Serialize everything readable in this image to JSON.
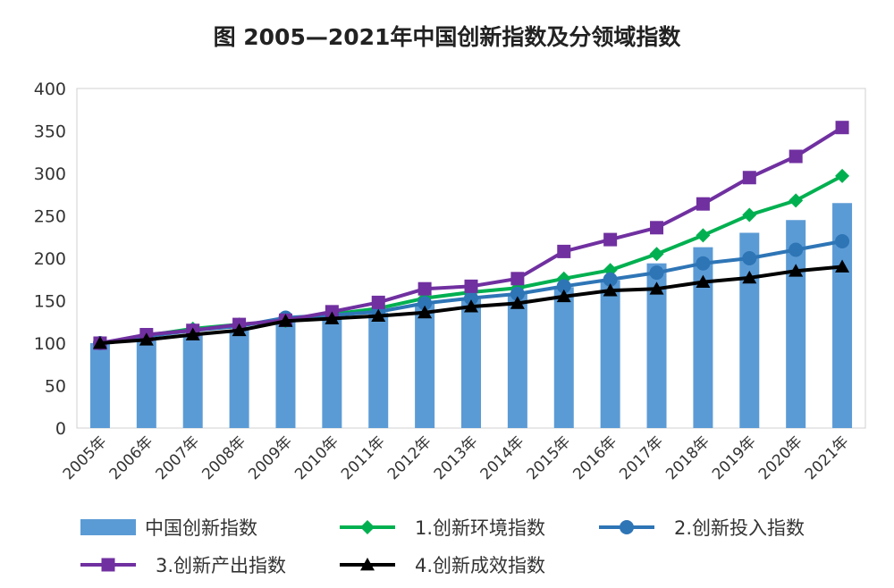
{
  "chart_data": {
    "type": "bar+line",
    "title": "图 2005—2021年中国创新指数及分领域指数",
    "categories": [
      "2005年",
      "2006年",
      "2007年",
      "2008年",
      "2009年",
      "2010年",
      "2011年",
      "2012年",
      "2013年",
      "2014年",
      "2015年",
      "2016年",
      "2017年",
      "2018年",
      "2019年",
      "2020年",
      "2021年"
    ],
    "ylim": [
      0,
      400
    ],
    "yticks": [
      0,
      50,
      100,
      150,
      200,
      250,
      300,
      350,
      400
    ],
    "grid": false,
    "legend_position": "bottom",
    "bar_series": {
      "name": "中国创新指数",
      "color": "#5b9bd5",
      "values": [
        100,
        106,
        111,
        116,
        127,
        131,
        136,
        147,
        152,
        158,
        166,
        174,
        194,
        213,
        230,
        245,
        265
      ]
    },
    "series": [
      {
        "name": "1.创新环境指数",
        "color": "#00b050",
        "marker": "diamond",
        "values": [
          100,
          109,
          117,
          122,
          126,
          134,
          141,
          153,
          160,
          165,
          176,
          186,
          205,
          227,
          251,
          268,
          297
        ]
      },
      {
        "name": "2.创新投入指数",
        "color": "#2e75b6",
        "marker": "circle",
        "values": [
          100,
          108,
          115,
          120,
          130,
          133,
          137,
          147,
          153,
          158,
          167,
          175,
          183,
          194,
          200,
          210,
          220
        ]
      },
      {
        "name": "3.创新产出指数",
        "color": "#7030a0",
        "marker": "square",
        "values": [
          100,
          110,
          115,
          122,
          127,
          137,
          148,
          164,
          167,
          176,
          208,
          222,
          236,
          264,
          295,
          320,
          354
        ]
      },
      {
        "name": "4.创新成效指数",
        "color": "#000000",
        "marker": "triangle",
        "values": [
          100,
          104,
          110,
          115,
          126,
          129,
          132,
          136,
          143,
          147,
          155,
          162,
          164,
          172,
          177,
          185,
          190
        ]
      }
    ]
  }
}
